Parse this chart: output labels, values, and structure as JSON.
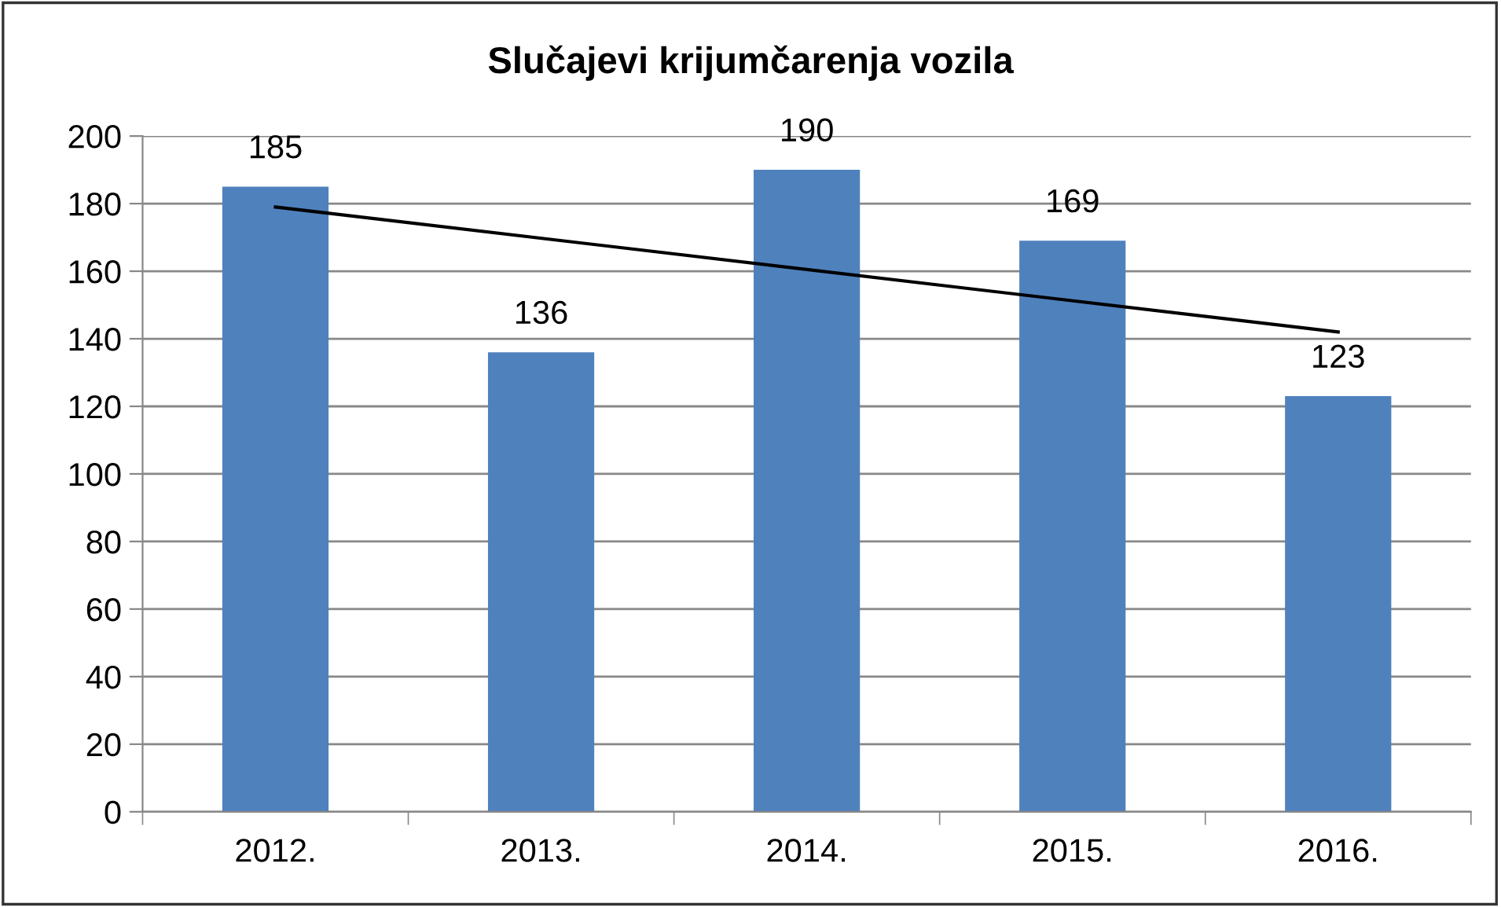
{
  "chart_data": {
    "type": "bar",
    "title": "Slučajevi krijumčarenja vozila",
    "categories": [
      "2012.",
      "2013.",
      "2014.",
      "2015.",
      "2016."
    ],
    "series": [
      {
        "color": "#4f81bd",
        "values": [
          185,
          136,
          190,
          169,
          123
        ],
        "value_labels": [
          "185",
          "136",
          "190",
          "169",
          "123"
        ]
      },
      {
        "type": "line",
        "color": "#000000",
        "x": [
          "2012.",
          "2016."
        ],
        "values": [
          179,
          142
        ]
      }
    ],
    "ylim": [
      0,
      200
    ],
    "yticks": [
      0,
      20,
      40,
      60,
      80,
      100,
      120,
      140,
      160,
      180,
      200
    ],
    "grid": "y",
    "legend": false
  }
}
